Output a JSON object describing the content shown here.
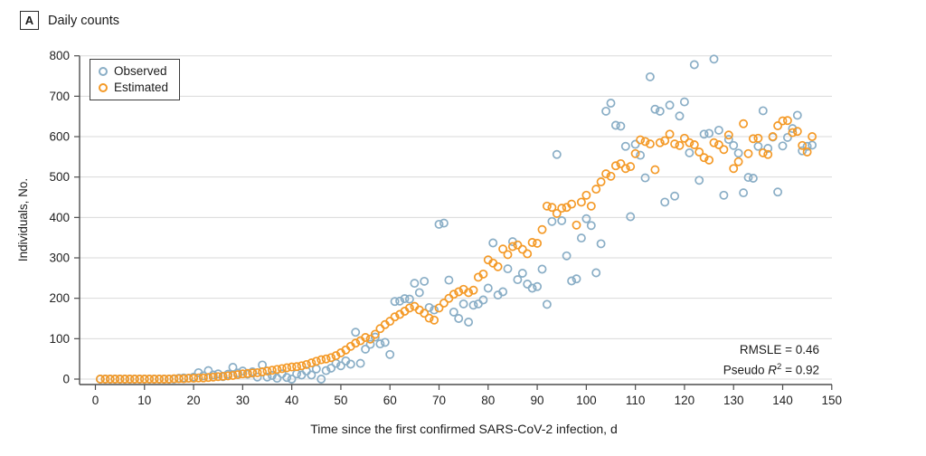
{
  "header": {
    "panel_label": "A",
    "title": "Daily counts"
  },
  "legend": {
    "items": [
      {
        "label": "Observed",
        "color": "#8AAEC6"
      },
      {
        "label": "Estimated",
        "color": "#F49A28"
      }
    ]
  },
  "annotation": {
    "rmsle": "RMSLE = 0.46",
    "pseudo_prefix": "Pseudo ",
    "pseudo_symbol": "R",
    "pseudo_sup": "2",
    "pseudo_rest": " = 0.92"
  },
  "colors": {
    "observed": "#8AAEC6",
    "estimated": "#F49A28",
    "grid": "#DADADA",
    "axis": "#4D4D4D",
    "text": "#212121"
  },
  "chart_data": {
    "type": "scatter",
    "title": "Daily counts",
    "xlabel": "Time since the first confirmed SARS-CoV-2 infection, d",
    "ylabel": "Individuals, No.",
    "xlim": [
      0,
      150
    ],
    "ylim": [
      0,
      800
    ],
    "x_ticks": [
      0,
      10,
      20,
      30,
      40,
      50,
      60,
      70,
      80,
      90,
      100,
      110,
      120,
      130,
      140,
      150
    ],
    "y_ticks": [
      0,
      100,
      200,
      300,
      400,
      500,
      600,
      700,
      800
    ],
    "grid": "horizontal",
    "legend_position": "upper-left",
    "marker": "open-circle",
    "x": [
      1,
      2,
      3,
      4,
      5,
      6,
      7,
      8,
      9,
      10,
      11,
      12,
      13,
      14,
      15,
      16,
      17,
      18,
      19,
      20,
      21,
      22,
      23,
      24,
      25,
      26,
      27,
      28,
      29,
      30,
      31,
      32,
      33,
      34,
      35,
      36,
      37,
      38,
      39,
      40,
      41,
      42,
      43,
      44,
      45,
      46,
      47,
      48,
      49,
      50,
      51,
      52,
      53,
      54,
      55,
      56,
      57,
      58,
      59,
      60,
      61,
      62,
      63,
      64,
      65,
      66,
      67,
      68,
      69,
      70,
      71,
      72,
      73,
      74,
      75,
      76,
      77,
      78,
      79,
      80,
      81,
      82,
      83,
      84,
      85,
      86,
      87,
      88,
      89,
      90,
      91,
      92,
      93,
      94,
      95,
      96,
      97,
      98,
      99,
      100,
      101,
      102,
      103,
      104,
      105,
      106,
      107,
      108,
      109,
      110,
      111,
      112,
      113,
      114,
      115,
      116,
      117,
      118,
      119,
      120,
      121,
      122,
      123,
      124,
      125,
      126,
      127,
      128,
      129,
      130,
      131,
      132,
      133,
      134,
      135,
      136,
      137,
      138,
      139,
      140,
      141,
      142,
      143,
      144,
      145,
      146
    ],
    "series": [
      {
        "name": "Observed",
        "values": [
          0,
          0,
          0,
          0,
          0,
          0,
          0,
          0,
          0,
          0,
          0,
          0,
          0,
          0,
          0,
          0,
          2,
          3,
          2,
          5,
          16,
          8,
          21,
          10,
          13,
          6,
          12,
          29,
          15,
          20,
          12,
          18,
          5,
          35,
          5,
          9,
          2,
          13,
          4,
          0,
          13,
          10,
          20,
          10,
          25,
          0,
          21,
          27,
          39,
          33,
          45,
          37,
          116,
          39,
          74,
          86,
          104,
          87,
          91,
          61,
          192,
          193,
          199,
          198,
          237,
          214,
          242,
          177,
          171,
          383,
          386,
          245,
          166,
          150,
          186,
          141,
          183,
          186,
          196,
          225,
          337,
          208,
          216,
          273,
          340,
          246,
          262,
          235,
          225,
          229,
          272,
          185,
          390,
          556,
          392,
          305,
          243,
          248,
          349,
          397,
          380,
          263,
          335,
          663,
          683,
          628,
          626,
          576,
          402,
          581,
          554,
          498,
          748,
          668,
          663,
          438,
          678,
          453,
          651,
          686,
          560,
          778,
          492,
          606,
          608,
          792,
          616,
          455,
          593,
          578,
          559,
          461,
          499,
          497,
          576,
          664,
          571,
          599,
          463,
          577,
          598,
          620,
          653,
          565,
          576,
          579
        ]
      },
      {
        "name": "Estimated",
        "values": [
          0,
          0,
          0,
          0,
          0,
          0,
          0,
          0,
          0,
          0,
          0,
          0,
          0,
          0,
          0,
          1,
          1,
          1,
          2,
          2,
          3,
          3,
          4,
          5,
          6,
          7,
          8,
          9,
          11,
          13,
          14,
          15,
          16,
          18,
          20,
          22,
          24,
          26,
          28,
          30,
          31,
          33,
          36,
          40,
          44,
          48,
          50,
          53,
          58,
          65,
          72,
          81,
          89,
          95,
          103,
          99,
          111,
          125,
          135,
          143,
          154,
          160,
          168,
          176,
          180,
          171,
          163,
          151,
          146,
          176,
          188,
          200,
          210,
          216,
          222,
          214,
          220,
          252,
          260,
          295,
          287,
          278,
          322,
          308,
          328,
          332,
          321,
          310,
          338,
          336,
          370,
          428,
          425,
          410,
          423,
          425,
          433,
          381,
          438,
          455,
          428,
          470,
          488,
          508,
          502,
          528,
          533,
          521,
          526,
          558,
          592,
          588,
          582,
          518,
          585,
          590,
          606,
          582,
          578,
          596,
          585,
          580,
          562,
          548,
          542,
          585,
          580,
          568,
          604,
          521,
          538,
          632,
          558,
          595,
          596,
          560,
          556,
          600,
          627,
          639,
          640,
          610,
          613,
          578,
          562,
          600
        ]
      }
    ],
    "annotations": [
      "RMSLE = 0.46",
      "Pseudo R2 = 0.92"
    ]
  }
}
